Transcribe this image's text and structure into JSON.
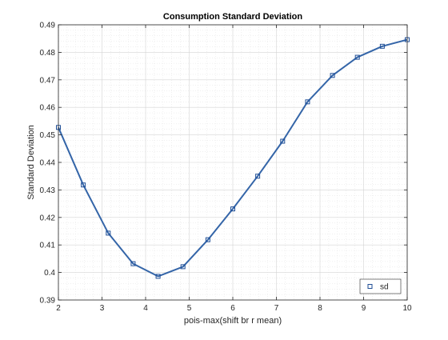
{
  "chart_data": {
    "type": "line",
    "title": "Consumption Standard Deviation",
    "xlabel": "pois-max(shift br r mean)",
    "ylabel": "Standard Deviation",
    "xlim": [
      2,
      10
    ],
    "ylim": [
      0.39,
      0.49
    ],
    "xticks": [
      "2",
      "3",
      "4",
      "5",
      "6",
      "7",
      "8",
      "9",
      "10"
    ],
    "yticks": [
      "0.39",
      "0.4",
      "0.41",
      "0.42",
      "0.43",
      "0.44",
      "0.45",
      "0.46",
      "0.47",
      "0.48",
      "0.49"
    ],
    "grid": true,
    "minor_grid": true,
    "legend_position": "bottom-right",
    "series": [
      {
        "name": "sd",
        "color": "#3465a8",
        "marker": "square",
        "x": [
          2.0,
          2.571,
          3.143,
          3.714,
          4.286,
          4.857,
          5.429,
          6.0,
          6.571,
          7.143,
          7.714,
          8.286,
          8.857,
          9.429,
          10.0
        ],
        "y": [
          0.4527,
          0.4318,
          0.4143,
          0.4032,
          0.3986,
          0.4021,
          0.4119,
          0.4231,
          0.435,
          0.4477,
          0.462,
          0.4716,
          0.4782,
          0.4822,
          0.4846
        ]
      }
    ]
  }
}
